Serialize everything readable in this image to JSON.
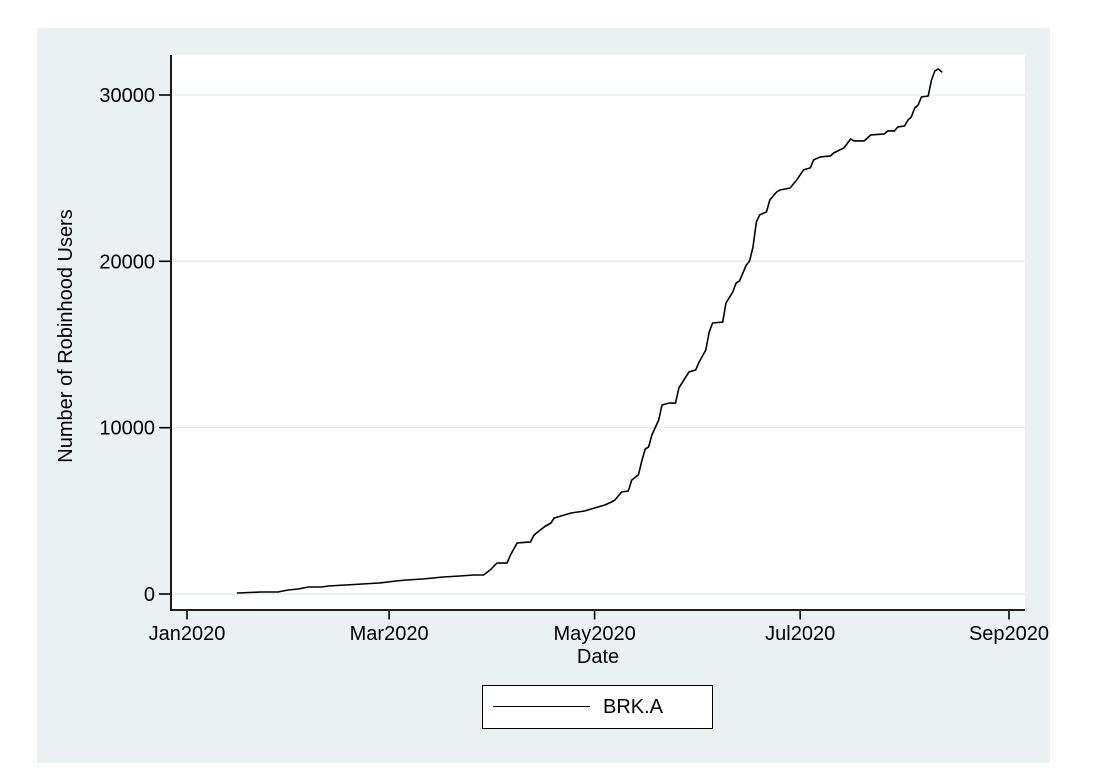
{
  "colors": {
    "page_bg": "#ffffff",
    "canvas_bg": "#e9f1f3",
    "plot_bg": "#ffffff",
    "grid": "#e4edf0",
    "axis": "#000000",
    "line": "#000000",
    "text": "#000000",
    "legend_bg": "#ffffff",
    "legend_border": "#000000"
  },
  "chart_data": {
    "type": "line",
    "title": "",
    "xlabel": "Date",
    "ylabel": "Number of Robinhood Users",
    "grid": true,
    "x_axis": {
      "origin_date": "2020-01-01",
      "range_dates": [
        "2019-12-26",
        "2020-09-06"
      ],
      "ticks": [
        {
          "label": "Jan2020",
          "date": "2020-01-01"
        },
        {
          "label": "Mar2020",
          "date": "2020-03-01"
        },
        {
          "label": "May2020",
          "date": "2020-05-01"
        },
        {
          "label": "Jul2020",
          "date": "2020-07-01"
        },
        {
          "label": "Sep2020",
          "date": "2020-09-01"
        }
      ]
    },
    "y_axis": {
      "range": [
        -1000,
        32400
      ],
      "ticks": [
        {
          "label": "0",
          "value": 0
        },
        {
          "label": "10000",
          "value": 10000
        },
        {
          "label": "20000",
          "value": 20000
        },
        {
          "label": "30000",
          "value": 30000
        }
      ]
    },
    "legend": {
      "position": "bottom-center",
      "entries": [
        "BRK.A"
      ]
    },
    "series": [
      {
        "name": "BRK.A",
        "color": "#000000",
        "points": [
          [
            "2020-01-16",
            60
          ],
          [
            "2020-01-23",
            120
          ],
          [
            "2020-01-28",
            120
          ],
          [
            "2020-01-31",
            240
          ],
          [
            "2020-02-03",
            300
          ],
          [
            "2020-02-06",
            420
          ],
          [
            "2020-02-10",
            420
          ],
          [
            "2020-02-12",
            480
          ],
          [
            "2020-02-17",
            540
          ],
          [
            "2020-02-22",
            600
          ],
          [
            "2020-02-27",
            660
          ],
          [
            "2020-03-03",
            780
          ],
          [
            "2020-03-06",
            840
          ],
          [
            "2020-03-11",
            900
          ],
          [
            "2020-03-17",
            1020
          ],
          [
            "2020-03-22",
            1080
          ],
          [
            "2020-03-26",
            1140
          ],
          [
            "2020-03-29",
            1140
          ],
          [
            "2020-03-31",
            1440
          ],
          [
            "2020-04-02",
            1860
          ],
          [
            "2020-04-05",
            1860
          ],
          [
            "2020-04-06",
            2340
          ],
          [
            "2020-04-08",
            3070
          ],
          [
            "2020-04-12",
            3130
          ],
          [
            "2020-04-13",
            3550
          ],
          [
            "2020-04-16",
            4030
          ],
          [
            "2020-04-18",
            4270
          ],
          [
            "2020-04-19",
            4570
          ],
          [
            "2020-04-21",
            4690
          ],
          [
            "2020-04-24",
            4870
          ],
          [
            "2020-04-28",
            4990
          ],
          [
            "2020-05-01",
            5170
          ],
          [
            "2020-05-04",
            5350
          ],
          [
            "2020-05-06",
            5530
          ],
          [
            "2020-05-07",
            5650
          ],
          [
            "2020-05-09",
            6130
          ],
          [
            "2020-05-11",
            6190
          ],
          [
            "2020-05-12",
            6850
          ],
          [
            "2020-05-14",
            7160
          ],
          [
            "2020-05-15",
            8000
          ],
          [
            "2020-05-16",
            8720
          ],
          [
            "2020-05-17",
            8840
          ],
          [
            "2020-05-18",
            9560
          ],
          [
            "2020-05-20",
            10460
          ],
          [
            "2020-05-21",
            11360
          ],
          [
            "2020-05-23",
            11480
          ],
          [
            "2020-05-25",
            11480
          ],
          [
            "2020-05-26",
            12390
          ],
          [
            "2020-05-29",
            13350
          ],
          [
            "2020-05-31",
            13470
          ],
          [
            "2020-06-01",
            13950
          ],
          [
            "2020-06-03",
            14670
          ],
          [
            "2020-06-04",
            15750
          ],
          [
            "2020-06-05",
            16290
          ],
          [
            "2020-06-08",
            16350
          ],
          [
            "2020-06-09",
            17500
          ],
          [
            "2020-06-11",
            18160
          ],
          [
            "2020-06-12",
            18700
          ],
          [
            "2020-06-13",
            18820
          ],
          [
            "2020-06-15",
            19780
          ],
          [
            "2020-06-16",
            20020
          ],
          [
            "2020-06-17",
            20870
          ],
          [
            "2020-06-18",
            22370
          ],
          [
            "2020-06-19",
            22790
          ],
          [
            "2020-06-21",
            22970
          ],
          [
            "2020-06-22",
            23690
          ],
          [
            "2020-06-24",
            24170
          ],
          [
            "2020-06-25",
            24290
          ],
          [
            "2020-06-28",
            24410
          ],
          [
            "2020-06-30",
            24900
          ],
          [
            "2020-07-01",
            25200
          ],
          [
            "2020-07-02",
            25500
          ],
          [
            "2020-07-04",
            25620
          ],
          [
            "2020-07-05",
            26100
          ],
          [
            "2020-07-07",
            26280
          ],
          [
            "2020-07-10",
            26340
          ],
          [
            "2020-07-11",
            26520
          ],
          [
            "2020-07-14",
            26820
          ],
          [
            "2020-07-16",
            27360
          ],
          [
            "2020-07-17",
            27240
          ],
          [
            "2020-07-20",
            27240
          ],
          [
            "2020-07-22",
            27600
          ],
          [
            "2020-07-26",
            27660
          ],
          [
            "2020-07-27",
            27840
          ],
          [
            "2020-07-29",
            27840
          ],
          [
            "2020-07-30",
            28080
          ],
          [
            "2020-08-01",
            28140
          ],
          [
            "2020-08-02",
            28500
          ],
          [
            "2020-08-03",
            28680
          ],
          [
            "2020-08-04",
            29220
          ],
          [
            "2020-08-05",
            29400
          ],
          [
            "2020-08-06",
            29880
          ],
          [
            "2020-08-08",
            29940
          ],
          [
            "2020-08-09",
            30900
          ],
          [
            "2020-08-10",
            31450
          ],
          [
            "2020-08-11",
            31570
          ],
          [
            "2020-08-12",
            31390
          ]
        ]
      }
    ]
  }
}
